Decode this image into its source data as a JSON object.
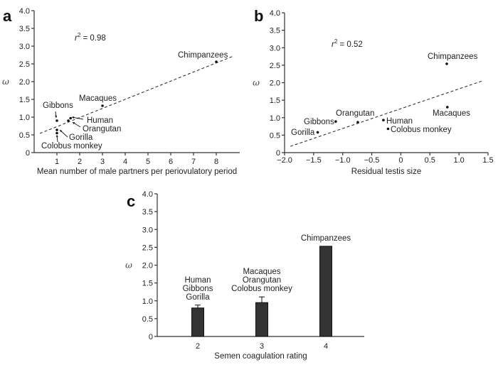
{
  "chart_data": [
    {
      "panel": "a",
      "type": "scatter",
      "xlabel": "Mean number of male partners per periovulatory period",
      "ylabel": "ω",
      "xlim": [
        0,
        9
      ],
      "ylim": [
        0,
        4.0
      ],
      "xticks": [
        1,
        2,
        3,
        4,
        5,
        6,
        7,
        8
      ],
      "yticks": [
        0,
        0.5,
        1.0,
        1.5,
        2.0,
        2.5,
        3.0,
        3.5,
        4.0
      ],
      "ytick_labels": [
        "0",
        "0.5",
        "1.0",
        "1.5",
        "2.0",
        "2.5",
        "3.0",
        "3.5",
        "4.0"
      ],
      "annotation": "r2 = 0.98",
      "points": [
        {
          "name": "Chimpanzees",
          "x": 8.0,
          "y": 2.56
        },
        {
          "name": "Macaques",
          "x": 3.0,
          "y": 1.32
        },
        {
          "name": "Gibbons",
          "x": 1.0,
          "y": 0.9
        },
        {
          "name": "Human",
          "x": 1.6,
          "y": 0.97
        },
        {
          "name": "Orangutan",
          "x": 1.5,
          "y": 0.9
        },
        {
          "name": "Gorilla",
          "x": 1.0,
          "y": 0.64
        },
        {
          "name": "Colobus monkey",
          "x": 1.0,
          "y": 0.55
        }
      ],
      "fit_line": {
        "x": [
          0.25,
          8.75
        ],
        "y": [
          0.54,
          2.72
        ],
        "style": "dashed"
      }
    },
    {
      "panel": "b",
      "type": "scatter",
      "xlabel": "Residual testis size",
      "ylabel": "ω",
      "xlim": [
        -2.0,
        1.5
      ],
      "ylim": [
        0,
        4.0
      ],
      "xticks": [
        -2.0,
        -1.5,
        -1.0,
        -0.5,
        0,
        0.5,
        1.0,
        1.5
      ],
      "xtick_labels": [
        "−2.0",
        "−1.5",
        "−1.0",
        "−0.5",
        "0",
        "0.5",
        "1.0",
        "1.5"
      ],
      "yticks": [
        0,
        0.5,
        1.0,
        1.5,
        2.0,
        2.5,
        3.0,
        3.5,
        4.0
      ],
      "ytick_labels": [
        "0",
        "0.5",
        "1.0",
        "1.5",
        "2.0",
        "2.5",
        "3.0",
        "3.5",
        "4.0"
      ],
      "annotation": "r2 = 0.52",
      "points": [
        {
          "name": "Chimpanzees",
          "x": 0.79,
          "y": 2.54
        },
        {
          "name": "Macaques",
          "x": 0.8,
          "y": 1.3
        },
        {
          "name": "Human",
          "x": -0.3,
          "y": 0.93
        },
        {
          "name": "Colobus monkey",
          "x": -0.22,
          "y": 0.68
        },
        {
          "name": "Orangutan",
          "x": -0.74,
          "y": 0.87
        },
        {
          "name": "Gibbons",
          "x": -1.12,
          "y": 0.89
        },
        {
          "name": "Gorilla",
          "x": -1.43,
          "y": 0.58
        }
      ],
      "fit_line": {
        "x": [
          -1.9,
          1.4
        ],
        "y": [
          0.18,
          2.05
        ],
        "style": "dashed"
      }
    },
    {
      "panel": "c",
      "type": "bar",
      "xlabel": "Semen coagulation rating",
      "ylabel": "ω",
      "categories": [
        "2",
        "3",
        "4"
      ],
      "values": [
        0.8,
        0.95,
        2.53
      ],
      "error_upper": [
        0.08,
        0.16,
        0
      ],
      "ylim": [
        0,
        4.0
      ],
      "yticks": [
        0,
        0.5,
        1.0,
        1.5,
        2.0,
        2.5,
        3.0,
        3.5,
        4.0
      ],
      "ytick_labels": [
        "0",
        "0.5",
        "1.0",
        "1.5",
        "2.0",
        "2.5",
        "3.0",
        "3.5",
        "4.0"
      ],
      "bar_labels": [
        [
          "Human",
          "Gibbons",
          "Gorilla"
        ],
        [
          "Macaques",
          "Orangutan",
          "Colobus monkey"
        ],
        [
          "Chimpanzees"
        ]
      ],
      "bar_color": "#333333"
    }
  ],
  "panel_labels": [
    "a",
    "b",
    "c"
  ],
  "colors": {
    "ink": "#222222",
    "bar": "#333333",
    "axis": "#333333"
  }
}
